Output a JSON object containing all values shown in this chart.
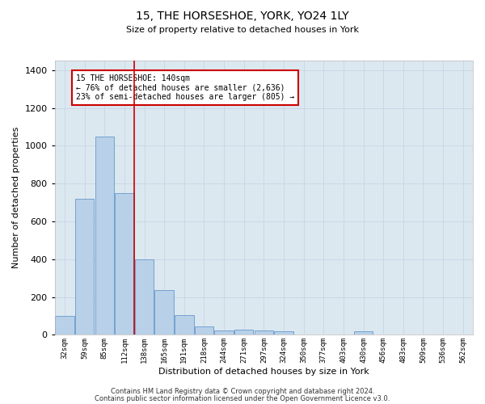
{
  "title": "15, THE HORSESHOE, YORK, YO24 1LY",
  "subtitle": "Size of property relative to detached houses in York",
  "xlabel": "Distribution of detached houses by size in York",
  "ylabel": "Number of detached properties",
  "footnote1": "Contains HM Land Registry data © Crown copyright and database right 2024.",
  "footnote2": "Contains public sector information licensed under the Open Government Licence v3.0.",
  "annotation_title": "15 THE HORSESHOE: 140sqm",
  "annotation_line1": "← 76% of detached houses are smaller (2,636)",
  "annotation_line2": "23% of semi-detached houses are larger (805) →",
  "property_line_index": 4,
  "bar_color": "#b8d0e8",
  "bar_edge_color": "#6699cc",
  "line_color": "#cc0000",
  "annotation_box_color": "#cc0000",
  "grid_color": "#c8d4e4",
  "background_color": "#dce8f0",
  "categories": [
    "32sqm",
    "59sqm",
    "85sqm",
    "112sqm",
    "138sqm",
    "165sqm",
    "191sqm",
    "218sqm",
    "244sqm",
    "271sqm",
    "297sqm",
    "324sqm",
    "350sqm",
    "377sqm",
    "403sqm",
    "430sqm",
    "456sqm",
    "483sqm",
    "509sqm",
    "536sqm",
    "562sqm"
  ],
  "values": [
    100,
    720,
    1050,
    750,
    400,
    235,
    105,
    45,
    22,
    28,
    22,
    18,
    0,
    0,
    0,
    18,
    0,
    0,
    0,
    0,
    0
  ],
  "ylim": [
    0,
    1450
  ],
  "yticks": [
    0,
    200,
    400,
    600,
    800,
    1000,
    1200,
    1400
  ],
  "title_fontsize": 10,
  "subtitle_fontsize": 8,
  "xlabel_fontsize": 8,
  "ylabel_fontsize": 8,
  "xtick_fontsize": 6.5,
  "ytick_fontsize": 8,
  "annotation_fontsize": 7,
  "footnote_fontsize": 6
}
